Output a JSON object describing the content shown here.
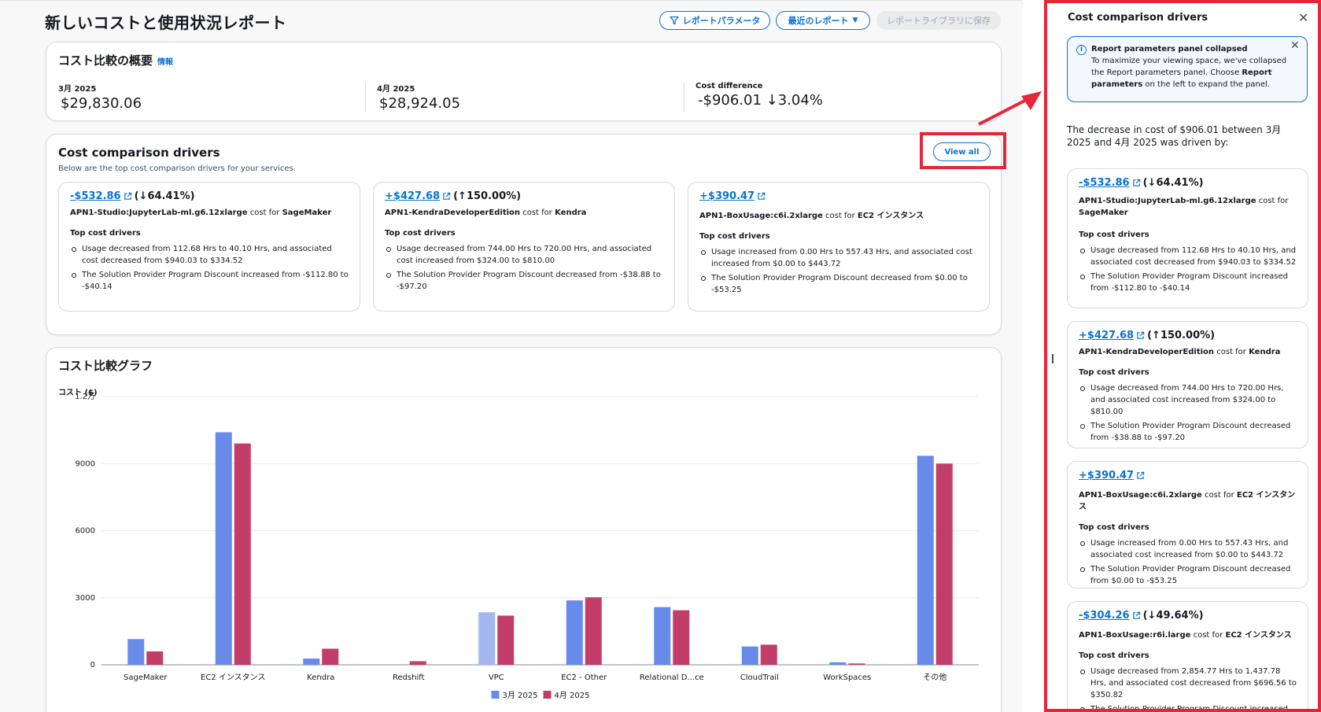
{
  "page": {
    "title": "新しいコストと使用状況レポート",
    "btn_params": "レポートパラメータ",
    "btn_recent": "最近のレポート",
    "btn_save": "レポートライブラリに保存"
  },
  "summary": {
    "title": "コスト比較の概要",
    "info": "情報",
    "metrics": [
      {
        "label": "3月 2025",
        "value": "$29,830.06"
      },
      {
        "label": "4月 2025",
        "value": "$28,924.05"
      },
      {
        "label": "Cost difference",
        "value": "-$906.01 ↓3.04%"
      }
    ]
  },
  "drivers": {
    "title": "Cost comparison drivers",
    "subtitle": "Below are the top cost comparison drivers for your services.",
    "view_all": "View all",
    "top_label": "Top cost drivers",
    "cost_for": "cost for",
    "cards": [
      {
        "amount": "-$532.86",
        "pct": "(↓64.41%)",
        "item": "APN1-Studio:JupyterLab-ml.g6.12xlarge",
        "service": "SageMaker",
        "bullets": [
          "Usage decreased from 112.68 Hrs to 40.10 Hrs, and associated cost decreased from $940.03 to $334.52",
          "The Solution Provider Program Discount increased from -$112.80 to -$40.14"
        ]
      },
      {
        "amount": "+$427.68",
        "pct": "(↑150.00%)",
        "item": "APN1-KendraDeveloperEdition",
        "service": "Kendra",
        "bullets": [
          "Usage decreased from 744.00 Hrs to 720.00 Hrs, and associated cost increased from $324.00 to $810.00",
          "The Solution Provider Program Discount decreased from -$38.88 to -$97.20"
        ]
      },
      {
        "amount": "+$390.47",
        "pct": "",
        "item": "APN1-BoxUsage:c6i.2xlarge",
        "service": "EC2 インスタンス",
        "bullets": [
          "Usage increased from 0.00 Hrs to 557.43 Hrs, and associated cost increased from $0.00 to $443.72",
          "The Solution Provider Program Discount decreased from $0.00 to -$53.25"
        ]
      }
    ]
  },
  "chart": {
    "title": "コスト比較グラフ",
    "ylabel": "コスト ($)"
  },
  "chart_data": {
    "type": "bar",
    "categories": [
      "SageMaker",
      "EC2 インスタンス",
      "Kendra",
      "Redshift",
      "VPC",
      "EC2 - Other",
      "Relational D...ce",
      "CloudTrail",
      "WorkSpaces",
      "その他"
    ],
    "series": [
      {
        "name": "3月 2025",
        "color": "#688ae8",
        "values": [
          1150,
          10400,
          280,
          0,
          2350,
          2880,
          2580,
          820,
          110,
          9350
        ]
      },
      {
        "name": "4月 2025",
        "color": "#c33d69",
        "values": [
          600,
          9900,
          720,
          160,
          2200,
          3020,
          2440,
          900,
          60,
          9000
        ]
      }
    ],
    "yticks": [
      0,
      3000,
      6000,
      9000,
      12000
    ],
    "ytick_labels": [
      "0",
      "3000",
      "6000",
      "9000",
      "1.2万"
    ],
    "ylim": [
      0,
      12000
    ],
    "legend": "bottom-center"
  },
  "side": {
    "title": "Cost comparison drivers",
    "alert_title": "Report parameters panel collapsed",
    "alert_body": "To maximize your viewing space, we've collapsed the Report parameters panel. Choose",
    "alert_bold": "Report parameters",
    "alert_tail": "on the left to expand the panel.",
    "intro": "The decrease in cost of $906.01 between 3月 2025 and 4月 2025 was driven by:",
    "cards": [
      {
        "amount": "-$532.86",
        "pct": "(↓64.41%)",
        "item": "APN1-Studio:JupyterLab-ml.g6.12xlarge",
        "service": "SageMaker",
        "bullets": [
          "Usage decreased from 112.68 Hrs to 40.10 Hrs, and associated cost decreased from $940.03 to $334.52",
          "The Solution Provider Program Discount increased from -$112.80 to -$40.14"
        ]
      },
      {
        "amount": "+$427.68",
        "pct": "(↑150.00%)",
        "item": "APN1-KendraDeveloperEdition",
        "service": "Kendra",
        "bullets": [
          "Usage decreased from 744.00 Hrs to 720.00 Hrs, and associated cost increased from $324.00 to $810.00",
          "The Solution Provider Program Discount decreased from -$38.88 to -$97.20"
        ]
      },
      {
        "amount": "+$390.47",
        "pct": "",
        "item": "APN1-BoxUsage:c6i.2xlarge",
        "service": "EC2 インスタンス",
        "bullets": [
          "Usage increased from 0.00 Hrs to 557.43 Hrs, and associated cost increased from $0.00 to $443.72",
          "The Solution Provider Program Discount decreased from $0.00 to -$53.25"
        ]
      },
      {
        "amount": "-$304.26",
        "pct": "(↓49.64%)",
        "item": "APN1-BoxUsage:r6i.large",
        "service": "EC2 インスタンス",
        "bullets": [
          "Usage decreased from 2,854.77 Hrs to 1,437.78 Hrs, and associated cost decreased from $696.56 to $350.82",
          "The Solution Provider Program Discount increased"
        ]
      }
    ]
  }
}
